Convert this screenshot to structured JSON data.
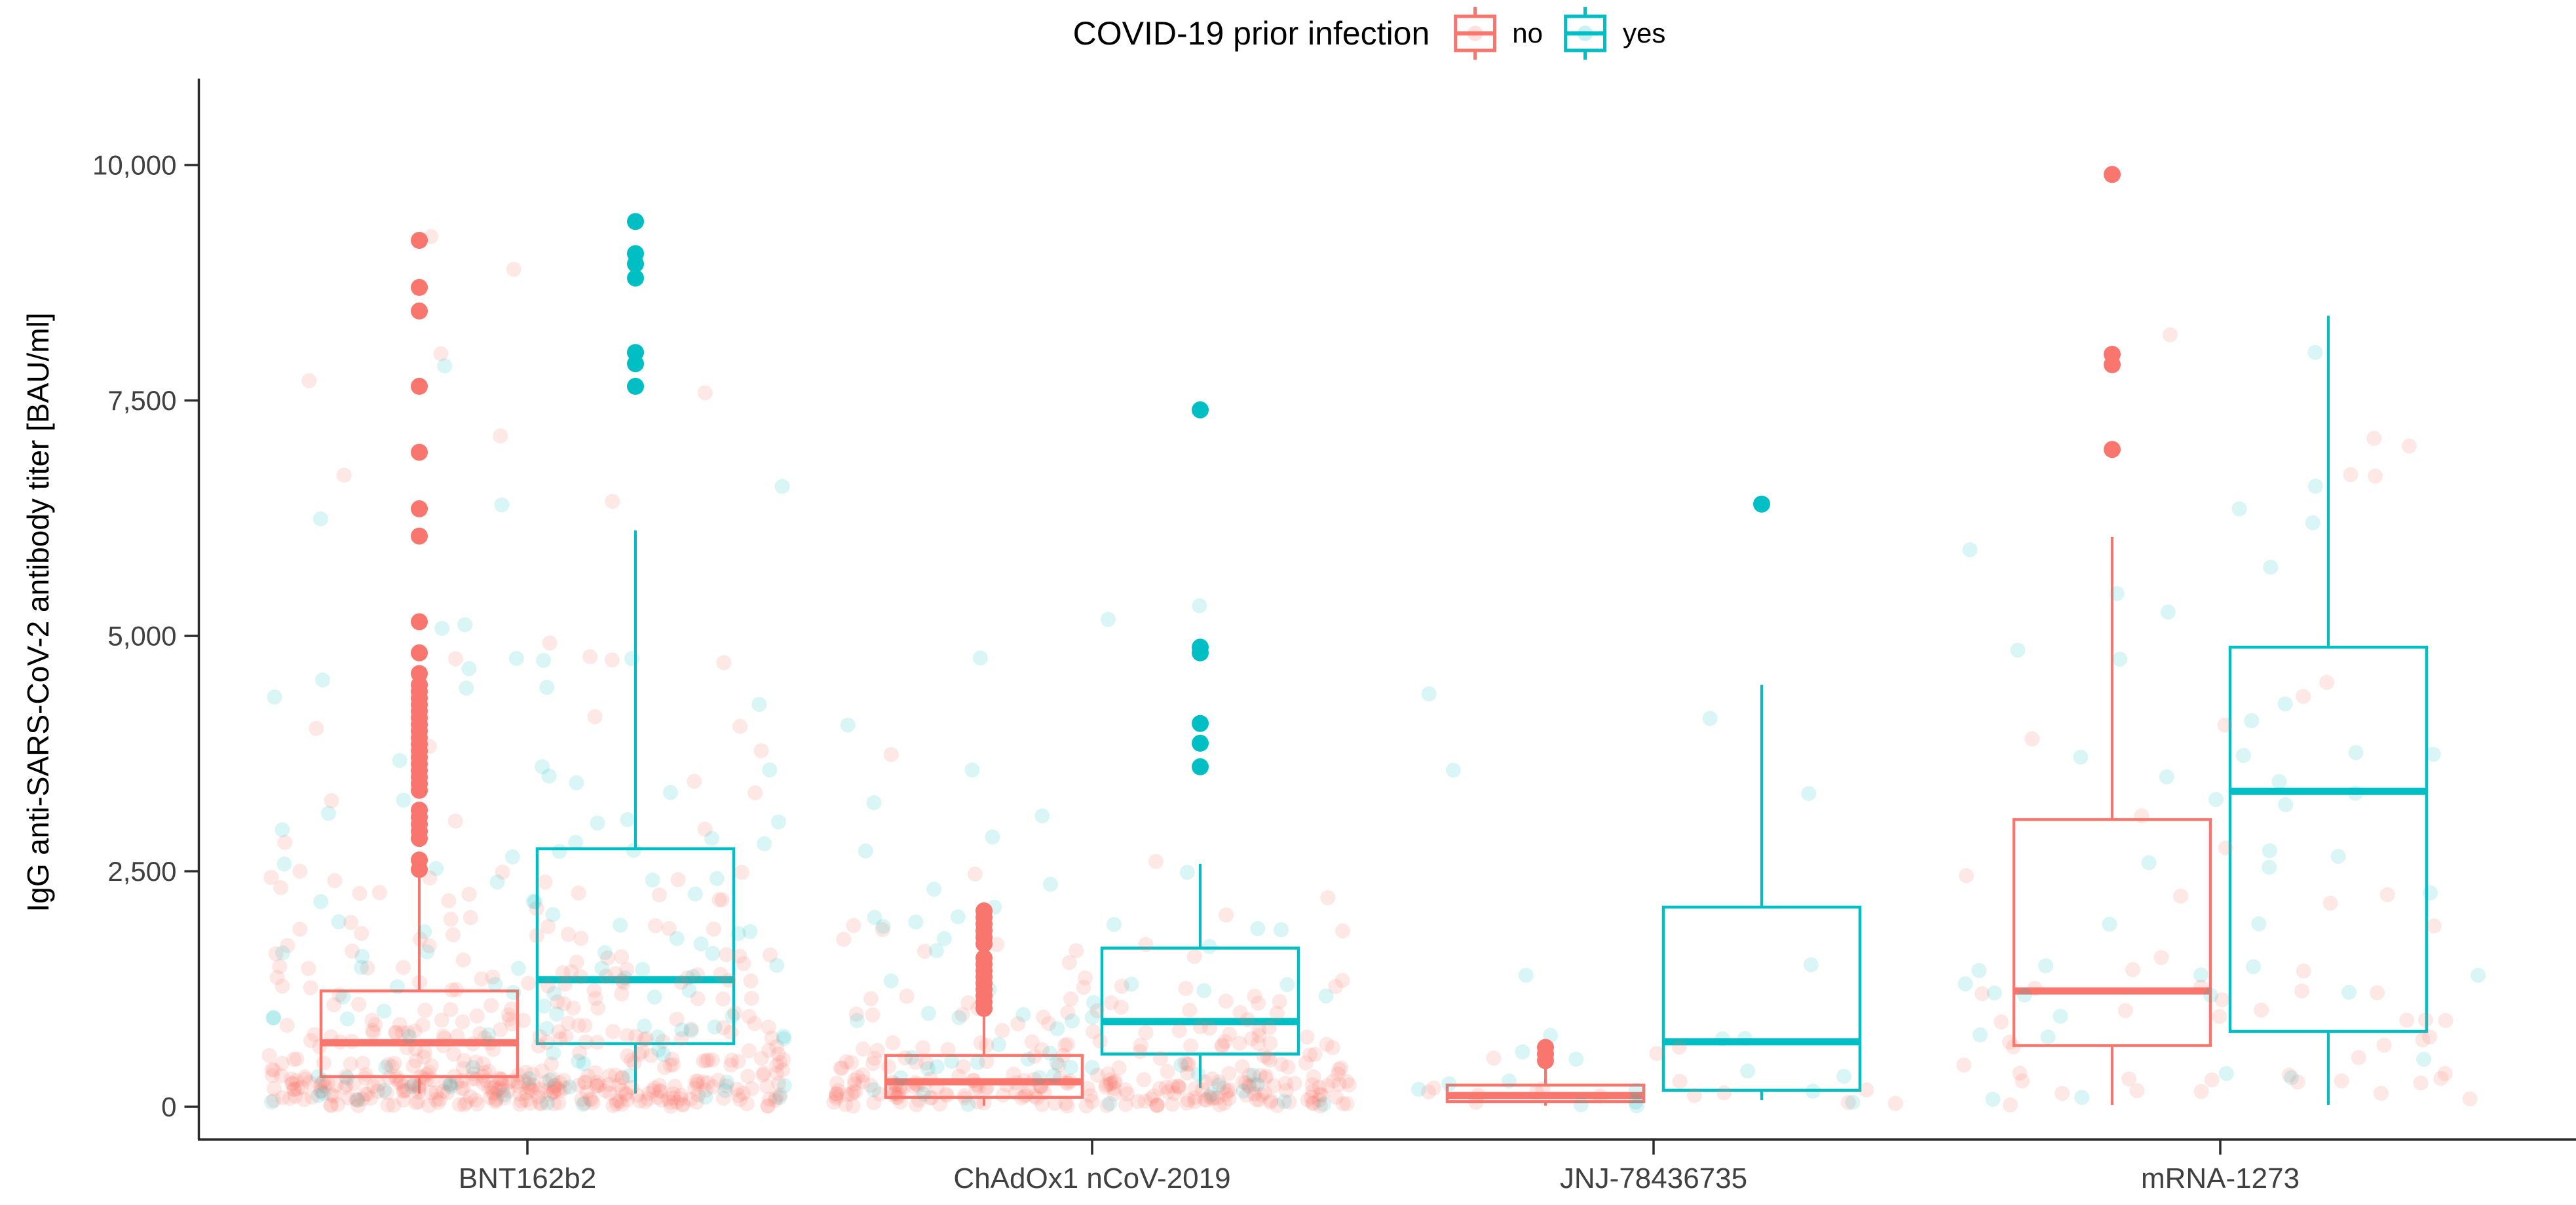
{
  "legend": {
    "title": "COVID-19 prior infection",
    "items": [
      {
        "label": "no",
        "color": "#F8766D"
      },
      {
        "label": "yes",
        "color": "#00BFC4"
      }
    ]
  },
  "axes": {
    "y_title": "IgG anti-SARS-CoV-2 antibody titer [BAU/ml]",
    "y_ticks": [
      {
        "value": 0,
        "label": "0"
      },
      {
        "value": 2500,
        "label": "2,500"
      },
      {
        "value": 5000,
        "label": "5,000"
      },
      {
        "value": 7500,
        "label": "7,500"
      },
      {
        "value": 10000,
        "label": "10,000"
      }
    ],
    "x_categories": [
      "BNT162b2",
      "ChAdOx1 nCoV-2019",
      "JNJ-78436735",
      "mRNA-1273"
    ]
  },
  "chart_data": {
    "type": "boxplot",
    "subtype": "grouped boxplot with jittered points",
    "title": "COVID-19 prior infection",
    "xlabel": "",
    "ylabel": "IgG anti-SARS-CoV-2 antibody titer [BAU/ml]",
    "ylim": [
      0,
      10000
    ],
    "grid": false,
    "legend_position": "top",
    "categories": [
      "BNT162b2",
      "ChAdOx1 nCoV-2019",
      "JNJ-78436735",
      "mRNA-1273"
    ],
    "series": [
      {
        "name": "no",
        "color": "#F8766D",
        "boxes": [
          {
            "category": "BNT162b2",
            "whisker_low": 140,
            "q1": 320,
            "median": 680,
            "q3": 1230,
            "whisker_high": 2440,
            "outliers": [
              9200,
              8700,
              8450,
              7650,
              6950,
              6350,
              6060,
              5150,
              4820,
              4600,
              4480,
              4410,
              4340,
              4270,
              4200,
              4130,
              4060,
              3990,
              3920,
              3850,
              3780,
              3710,
              3640,
              3570,
              3500,
              3430,
              3360,
              3150,
              3075,
              3000,
              2925,
              2850,
              2620,
              2520
            ]
          },
          {
            "category": "ChAdOx1 nCoV-2019",
            "whisker_low": 10,
            "q1": 100,
            "median": 265,
            "q3": 545,
            "whisker_high": 975,
            "outliers": [
              2080,
              2010,
              1940,
              1870,
              1800,
              1730,
              1580,
              1513,
              1446,
              1379,
              1312,
              1245,
              1178,
              1111,
              1044
            ]
          },
          {
            "category": "JNJ-78436735",
            "whisker_low": 10,
            "q1": 55,
            "median": 120,
            "q3": 230,
            "whisker_high": 410,
            "outliers": [
              630,
              560,
              490
            ]
          },
          {
            "category": "mRNA-1273",
            "whisker_low": 20,
            "q1": 650,
            "median": 1230,
            "q3": 3050,
            "whisker_high": 6050,
            "outliers": [
              9900,
              7990,
              7880,
              6980
            ]
          }
        ]
      },
      {
        "name": "yes",
        "color": "#00BFC4",
        "boxes": [
          {
            "category": "BNT162b2",
            "whisker_low": 140,
            "q1": 670,
            "median": 1350,
            "q3": 2740,
            "whisker_high": 6120,
            "outliers": [
              9400,
              9060,
              8950,
              8800,
              8010,
              7890,
              7650
            ]
          },
          {
            "category": "ChAdOx1 nCoV-2019",
            "whisker_low": 200,
            "q1": 560,
            "median": 905,
            "q3": 1685,
            "whisker_high": 2580,
            "outliers": [
              7400,
              4880,
              4820,
              4070,
              3860,
              3610
            ]
          },
          {
            "category": "JNJ-78436735",
            "whisker_low": 70,
            "q1": 175,
            "median": 690,
            "q3": 2120,
            "whisker_high": 4480,
            "outliers": [
              6400
            ]
          },
          {
            "category": "mRNA-1273",
            "whisker_low": 20,
            "q1": 800,
            "median": 3350,
            "q3": 4880,
            "whisker_high": 8400,
            "outliers": []
          }
        ]
      }
    ],
    "jitter_clouds": [
      {
        "category": "BNT162b2",
        "series": "no",
        "n": 480,
        "strata": [
          [
            0.5,
            5,
            350
          ],
          [
            0.25,
            350,
            900
          ],
          [
            0.12,
            900,
            1600
          ],
          [
            0.07,
            1600,
            2500
          ],
          [
            0.04,
            2500,
            5000
          ],
          [
            0.02,
            5000,
            9300
          ]
        ]
      },
      {
        "category": "BNT162b2",
        "series": "yes",
        "n": 115,
        "strata": [
          [
            0.28,
            10,
            500
          ],
          [
            0.3,
            500,
            1500
          ],
          [
            0.22,
            1500,
            3000
          ],
          [
            0.12,
            3000,
            5200
          ],
          [
            0.06,
            5200,
            7800
          ],
          [
            0.02,
            7800,
            9300
          ]
        ]
      },
      {
        "category": "ChAdOx1 nCoV-2019",
        "series": "no",
        "n": 300,
        "strata": [
          [
            0.62,
            5,
            300
          ],
          [
            0.22,
            300,
            700
          ],
          [
            0.1,
            700,
            1300
          ],
          [
            0.04,
            1300,
            2200
          ],
          [
            0.02,
            2200,
            4000
          ]
        ]
      },
      {
        "category": "ChAdOx1 nCoV-2019",
        "series": "yes",
        "n": 65,
        "strata": [
          [
            0.38,
            10,
            500
          ],
          [
            0.3,
            500,
            1200
          ],
          [
            0.2,
            1200,
            2100
          ],
          [
            0.09,
            2100,
            3200
          ],
          [
            0.03,
            3200,
            5500
          ]
        ]
      },
      {
        "category": "JNJ-78436735",
        "series": "no",
        "n": 16,
        "strata": [
          [
            0.78,
            5,
            200
          ],
          [
            0.22,
            200,
            700
          ]
        ]
      },
      {
        "category": "JNJ-78436735",
        "series": "yes",
        "n": 22,
        "strata": [
          [
            0.45,
            10,
            300
          ],
          [
            0.25,
            300,
            900
          ],
          [
            0.18,
            900,
            2300
          ],
          [
            0.12,
            2300,
            4600
          ]
        ]
      },
      {
        "category": "mRNA-1273",
        "series": "no",
        "n": 55,
        "strata": [
          [
            0.25,
            10,
            450
          ],
          [
            0.3,
            450,
            1300
          ],
          [
            0.22,
            1300,
            3000
          ],
          [
            0.15,
            3000,
            5300
          ],
          [
            0.06,
            6300,
            8200
          ],
          [
            0.02,
            9600,
            9900
          ]
        ]
      },
      {
        "category": "mRNA-1273",
        "series": "yes",
        "n": 46,
        "strata": [
          [
            0.2,
            15,
            500
          ],
          [
            0.28,
            500,
            1500
          ],
          [
            0.24,
            1500,
            3500
          ],
          [
            0.16,
            3500,
            5000
          ],
          [
            0.1,
            5000,
            6700
          ],
          [
            0.02,
            7800,
            8100
          ]
        ]
      }
    ]
  },
  "colors": {
    "no": "#F8766D",
    "yes": "#00BFC4",
    "axis": "#2b2b2b",
    "tick_text": "#404040",
    "box_fill": "#ffffff"
  }
}
